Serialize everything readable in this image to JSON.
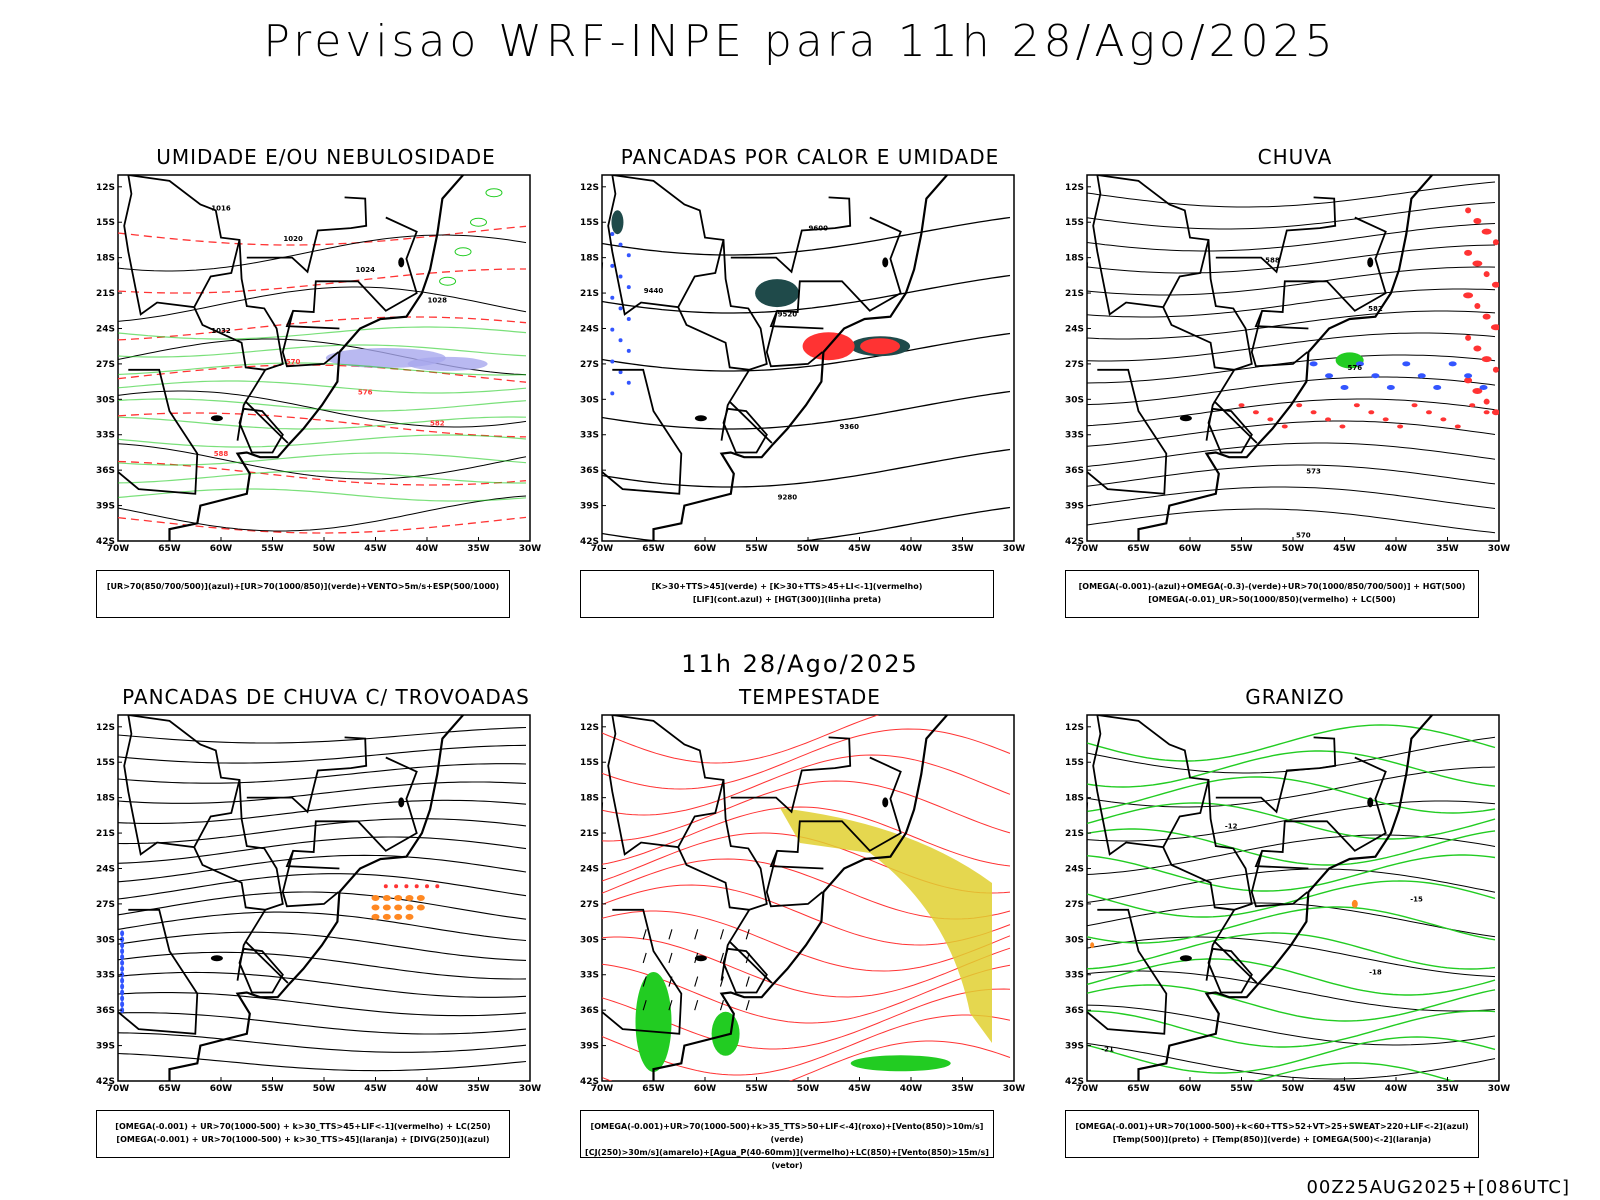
{
  "header": {
    "main_title": "Previsao WRF-INPE  para 11h 28/Ago/2025",
    "mid_title": "11h 28/Ago/2025",
    "footer": "00Z25AUG2025+[086UTC]"
  },
  "axes": {
    "lat_labels": [
      "12S",
      "15S",
      "18S",
      "21S",
      "24S",
      "27S",
      "30S",
      "33S",
      "36S",
      "39S",
      "42S"
    ],
    "lon_labels": [
      "70W",
      "65W",
      "60W",
      "55W",
      "50W",
      "45W",
      "40W",
      "35W",
      "30W"
    ]
  },
  "colors": {
    "red": "#ff3333",
    "green": "#22cc22",
    "blue": "#3355ff",
    "lavender": "#a8a8ee",
    "darkteal": "#1f4a4a",
    "yellow": "#e0d030",
    "orange": "#ff8822",
    "purple": "#7744cc"
  },
  "panels": [
    {
      "title": "UMIDADE E/OU NEBULOSIDADE",
      "legend": [
        "[UR>70(850/700/500)](azul)+[UR>70(1000/850)](verde)+VENTO>5m/s+ESP(500/1000)"
      ],
      "contour_labels": [
        "1016",
        "1020",
        "1024",
        "1028",
        "1032",
        "570",
        "576",
        "582",
        "588"
      ]
    },
    {
      "title": "PANCADAS POR CALOR E UMIDADE",
      "legend": [
        "[K>30+TTS>45](verde) + [K>30+TTS>45+LI<-1](vermelho)",
        "[LIF](cont.azul) + [HGT(300)](linha preta)"
      ],
      "contour_labels": [
        "9600",
        "9520",
        "9440",
        "9360",
        "9280"
      ]
    },
    {
      "title": "CHUVA",
      "legend": [
        "[OMEGA(-0.001)-(azul)+OMEGA(-0.3)-(verde)+UR>70(1000/850/700/500)] + HGT(500)",
        "[OMEGA(-0.01)_UR>50(1000/850)(vermelho) + LC(500)"
      ],
      "contour_labels": [
        "588",
        "582",
        "576",
        "573",
        "570"
      ]
    },
    {
      "title": "PANCADAS DE CHUVA C/ TROVOADAS",
      "legend": [
        "[OMEGA(-0.001) + UR>70(1000-500) + k>30_TTS>45+LIF<-1](vermelho) + LC(250)",
        "[OMEGA(-0.001) + UR>70(1000-500) + k>30_TTS>45](laranja) + [DIVG(250)](azul)"
      ],
      "contour_labels": []
    },
    {
      "title": "TEMPESTADE",
      "legend": [
        "[OMEGA(-0.001)+UR>70(1000-500)+k>35_TTS>50+LIF<-4](roxo)+[Vento(850)>10m/s](verde)",
        "[CJ(250)>30m/s](amarelo)+[Agua_P(40-60mm)](vermelho)+LC(850)+[Vento(850)>15m/s](vetor)"
      ],
      "contour_labels": []
    },
    {
      "title": "GRANIZO",
      "legend": [
        "[OMEGA(-0.001)+UR>70(1000-500)+k<60+TTS>52+VT>25+SWEAT>220+LIF<-2](azul)",
        "[Temp(500)](preto) + [Temp(850)](verde) + [OMEGA(500)<-2](laranja)"
      ],
      "contour_labels": [
        "-12",
        "-15",
        "-18",
        "-21"
      ]
    }
  ]
}
